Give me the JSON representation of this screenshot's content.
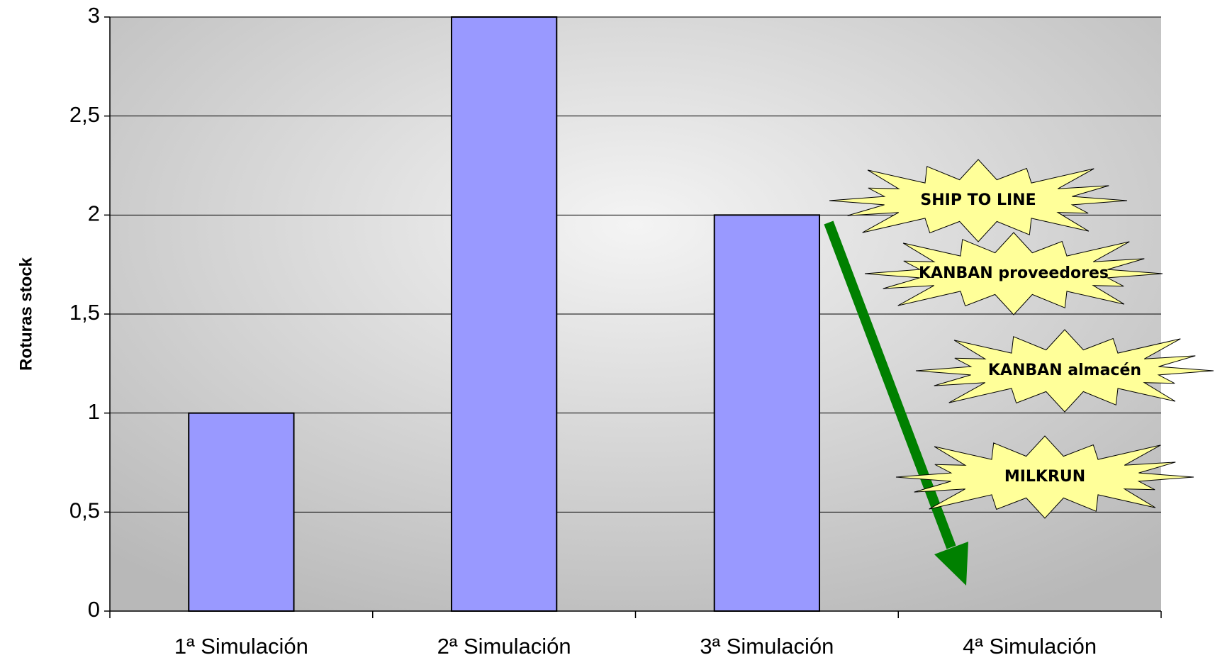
{
  "chart_data": {
    "type": "bar",
    "y_label": "Roturas stock",
    "categories": [
      "1ª Simulación",
      "2ª Simulación",
      "3ª Simulación",
      "4ª Simulación"
    ],
    "values": [
      1,
      3,
      2,
      null
    ],
    "color": "#9999ff",
    "ylim": [
      0,
      3
    ],
    "yticks": [
      0,
      {
        "value": 0.5,
        "label": "0,5"
      },
      1,
      {
        "value": 1.5,
        "label": "1,5"
      },
      2,
      {
        "value": 2.5,
        "label": "2,5"
      },
      3
    ],
    "grid": true,
    "annotations": [
      "SHIP TO LINE",
      "KANBAN proveedores",
      "KANBAN almacén",
      "MILKRUN"
    ]
  }
}
